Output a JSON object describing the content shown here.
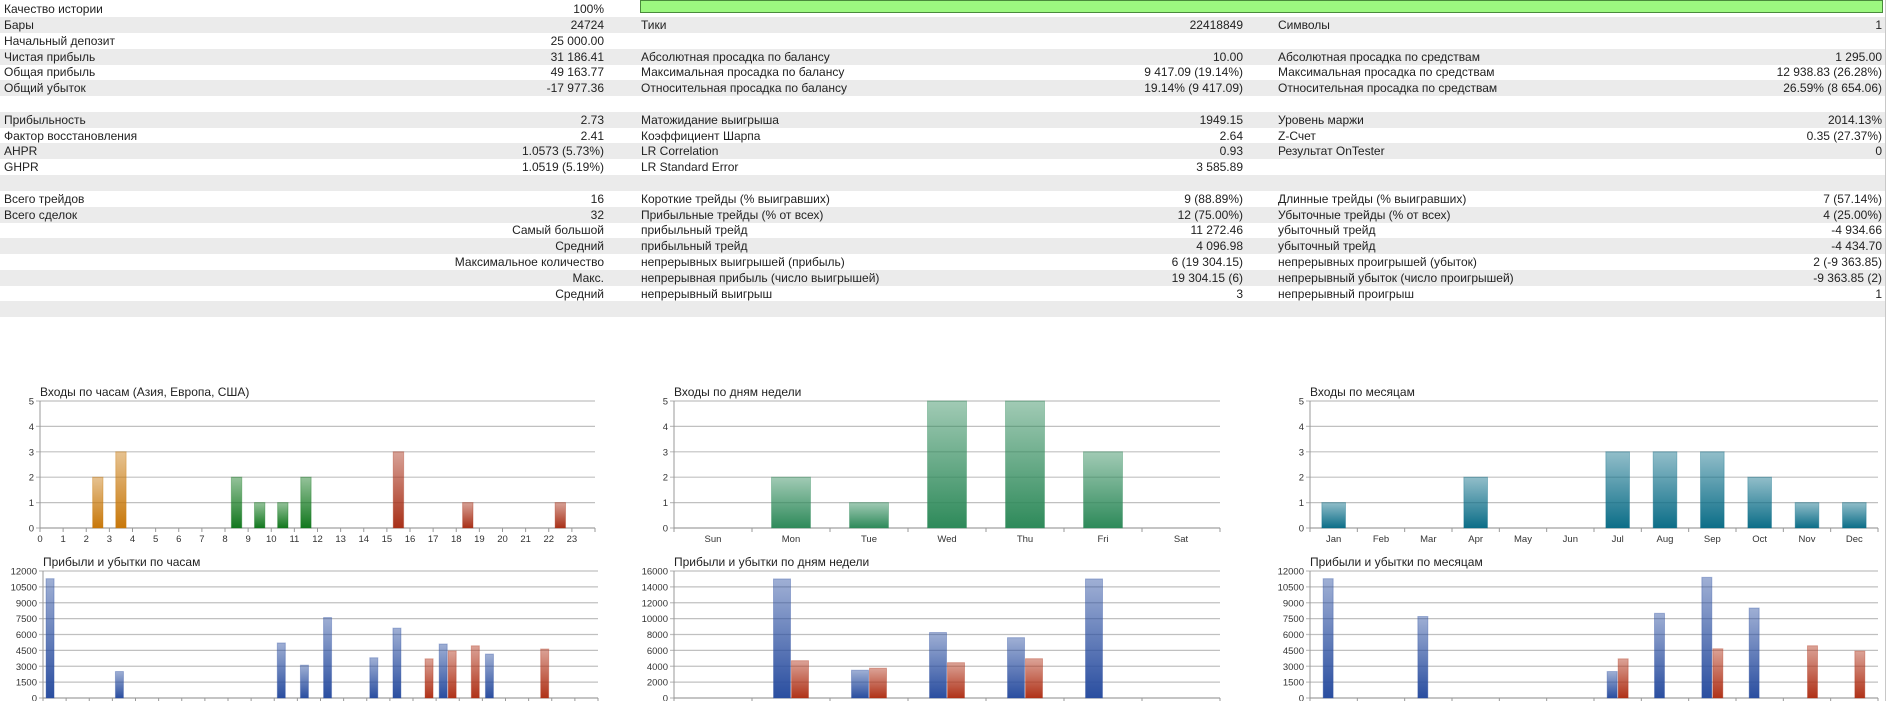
{
  "quality": {
    "label": "Качество истории",
    "value": "100%",
    "fill_percent": 100
  },
  "rows": [
    {
      "c1": {
        "label": "Бары",
        "value": "24724"
      },
      "c2": {
        "label": "Тики",
        "value": "22418849"
      },
      "c3": {
        "label": "Символы",
        "value": "1"
      }
    },
    {
      "c1": {
        "label": "Начальный депозит",
        "value": "25 000.00"
      }
    },
    {
      "c1": {
        "label": "Чистая прибыль",
        "value": "31 186.41"
      },
      "c2": {
        "label": "Абсолютная просадка по балансу",
        "value": "10.00"
      },
      "c3": {
        "label": "Абсолютная просадка по средствам",
        "value": "1 295.00"
      }
    },
    {
      "c1": {
        "label": "Общая прибыль",
        "value": "49 163.77"
      },
      "c2": {
        "label": "Максимальная просадка по балансу",
        "value": "9 417.09 (19.14%)"
      },
      "c3": {
        "label": "Максимальная просадка по средствам",
        "value": "12 938.83 (26.28%)"
      }
    },
    {
      "c1": {
        "label": "Общий убыток",
        "value": "-17 977.36"
      },
      "c2": {
        "label": "Относительная просадка по балансу",
        "value": "19.14% (9 417.09)"
      },
      "c3": {
        "label": "Относительная просадка по средствам",
        "value": "26.59% (8 654.06)"
      }
    },
    {},
    {
      "c1": {
        "label": "Прибыльность",
        "value": "2.73"
      },
      "c2": {
        "label": "Матожидание выигрыша",
        "value": "1949.15"
      },
      "c3": {
        "label": "Уровень маржи",
        "value": "2014.13%"
      }
    },
    {
      "c1": {
        "label": "Фактор восстановления",
        "value": "2.41"
      },
      "c2": {
        "label": "Коэффициент Шарпа",
        "value": "2.64"
      },
      "c3": {
        "label": "Z-Счет",
        "value": "0.35 (27.37%)"
      }
    },
    {
      "c1": {
        "label": "AHPR",
        "value": "1.0573 (5.73%)"
      },
      "c2": {
        "label": "LR Correlation",
        "value": "0.93"
      },
      "c3": {
        "label": "Результат OnTester",
        "value": "0"
      }
    },
    {
      "c1": {
        "label": "GHPR",
        "value": "1.0519 (5.19%)"
      },
      "c2": {
        "label": "LR Standard Error",
        "value": "3 585.89"
      }
    },
    {},
    {
      "c1": {
        "label": "Всего трейдов",
        "value": "16"
      },
      "c2": {
        "label": "Короткие трейды (% выигравших)",
        "value": "9 (88.89%)"
      },
      "c3": {
        "label": "Длинные трейды (% выигравших)",
        "value": "7 (57.14%)"
      }
    },
    {
      "c1": {
        "label": "Всего сделок",
        "value": "32"
      },
      "c2": {
        "label": "Прибыльные трейды (% от всех)",
        "value": "12 (75.00%)"
      },
      "c3": {
        "label": "Убыточные трейды (% от всех)",
        "value": "4 (25.00%)"
      }
    },
    {
      "c1": {
        "sub": "Самый большой"
      },
      "c2": {
        "label": "прибыльный трейд",
        "value": "11 272.46"
      },
      "c3": {
        "label": "убыточный трейд",
        "value": "-4 934.66"
      }
    },
    {
      "c1": {
        "sub": "Средний"
      },
      "c2": {
        "label": "прибыльный трейд",
        "value": "4 096.98"
      },
      "c3": {
        "label": "убыточный трейд",
        "value": "-4 434.70"
      }
    },
    {
      "c1": {
        "sub": "Максимальное количество"
      },
      "c2": {
        "label": "непрерывных выигрышей (прибыль)",
        "value": "6 (19 304.15)"
      },
      "c3": {
        "label": "непрерывных проигрышей (убыток)",
        "value": "2 (-9 363.85)"
      }
    },
    {
      "c1": {
        "sub": "Макс."
      },
      "c2": {
        "label": "непрерывная прибыль (число выигрышей)",
        "value": "19 304.15 (6)"
      },
      "c3": {
        "label": "непрерывный убыток (число проигрышей)",
        "value": "-9 363.85 (2)"
      }
    },
    {
      "c1": {
        "sub": "Средний"
      },
      "c2": {
        "label": "непрерывный выигрыш",
        "value": "3"
      },
      "c3": {
        "label": "непрерывный проигрыш",
        "value": "1"
      }
    },
    {}
  ],
  "colors": {
    "asia": "#c8780a",
    "europe": "#12781e",
    "usa": "#a83018",
    "weekday": "#2e8a5a",
    "month": "#0c6e88",
    "profit": "#2a4ea0",
    "loss": "#b03218",
    "grid": "#c0c0c0"
  },
  "chart_data": [
    {
      "type": "bar",
      "title": "Входы по часам (Азия, Европа, США)",
      "categories": [
        "0",
        "1",
        "2",
        "3",
        "4",
        "5",
        "6",
        "7",
        "8",
        "9",
        "10",
        "11",
        "12",
        "13",
        "14",
        "15",
        "16",
        "17",
        "18",
        "19",
        "20",
        "21",
        "22",
        "23"
      ],
      "values": [
        0,
        0,
        2,
        3,
        0,
        0,
        0,
        0,
        2,
        1,
        1,
        2,
        0,
        0,
        0,
        3,
        0,
        0,
        1,
        0,
        0,
        0,
        1,
        0
      ],
      "session": [
        "asia",
        "asia",
        "asia",
        "asia",
        "asia",
        "asia",
        "asia",
        "asia",
        "europe",
        "europe",
        "europe",
        "europe",
        "europe",
        "europe",
        "europe",
        "usa",
        "usa",
        "usa",
        "usa",
        "usa",
        "usa",
        "usa",
        "usa",
        "usa"
      ],
      "ylim": [
        0,
        5
      ],
      "yticks": [
        "0",
        "1",
        "2",
        "3",
        "4",
        "5"
      ],
      "grid": true
    },
    {
      "type": "bar",
      "title": "Входы по дням недели",
      "categories": [
        "Sun",
        "Mon",
        "Tue",
        "Wed",
        "Thu",
        "Fri",
        "Sat"
      ],
      "values": [
        0,
        2,
        1,
        5,
        5,
        3,
        0
      ],
      "ylim": [
        0,
        5
      ],
      "yticks": [
        "0",
        "1",
        "2",
        "3",
        "4",
        "5"
      ],
      "grid": true
    },
    {
      "type": "bar",
      "title": "Входы по месяцам",
      "categories": [
        "Jan",
        "Feb",
        "Mar",
        "Apr",
        "May",
        "Jun",
        "Jul",
        "Aug",
        "Sep",
        "Oct",
        "Nov",
        "Dec"
      ],
      "values": [
        1,
        0,
        0,
        2,
        0,
        0,
        3,
        3,
        3,
        2,
        1,
        1
      ],
      "ylim": [
        0,
        5
      ],
      "yticks": [
        "0",
        "1",
        "2",
        "3",
        "4",
        "5"
      ],
      "grid": true
    },
    {
      "type": "bar",
      "title": "Прибыли и убытки по часам",
      "slots": 24,
      "series": [
        {
          "name": "profit",
          "values": [
            11272,
            0,
            0,
            2500,
            0,
            0,
            0,
            0,
            0,
            0,
            5200,
            3100,
            7600,
            0,
            3800,
            6600,
            0,
            5100,
            0,
            4150,
            0,
            0,
            0,
            0
          ]
        },
        {
          "name": "loss",
          "values": [
            0,
            0,
            0,
            0,
            0,
            0,
            0,
            0,
            0,
            0,
            0,
            0,
            0,
            0,
            0,
            0,
            3700,
            4450,
            4930,
            0,
            0,
            4630,
            0,
            0
          ]
        }
      ],
      "ylim": [
        0,
        12000
      ],
      "yticks": [
        "0",
        "1500",
        "3000",
        "4500",
        "6000",
        "7500",
        "9000",
        "10500",
        "12000"
      ],
      "grid": true
    },
    {
      "type": "bar",
      "title": "Прибыли и убытки по дням недели",
      "slots": 7,
      "series": [
        {
          "name": "profit",
          "values": [
            0,
            15000,
            3500,
            8250,
            7600,
            15000,
            0
          ]
        },
        {
          "name": "loss",
          "values": [
            0,
            4700,
            3750,
            4450,
            4950,
            0,
            0
          ]
        }
      ],
      "ylim": [
        0,
        16000
      ],
      "yticks": [
        "0",
        "2000",
        "4000",
        "6000",
        "8000",
        "10000",
        "12000",
        "14000",
        "16000"
      ],
      "grid": true
    },
    {
      "type": "bar",
      "title": "Прибыли и убытки по месяцам",
      "slots": 12,
      "series": [
        {
          "name": "profit",
          "values": [
            11272,
            0,
            7700,
            0,
            0,
            0,
            2500,
            8000,
            11400,
            8500,
            0,
            0
          ]
        },
        {
          "name": "loss",
          "values": [
            0,
            0,
            0,
            0,
            0,
            0,
            3700,
            0,
            4650,
            0,
            4935,
            4435
          ]
        }
      ],
      "ylim": [
        0,
        12000
      ],
      "yticks": [
        "0",
        "1500",
        "3000",
        "4500",
        "6000",
        "7500",
        "9000",
        "10500",
        "12000"
      ],
      "grid": true
    }
  ]
}
